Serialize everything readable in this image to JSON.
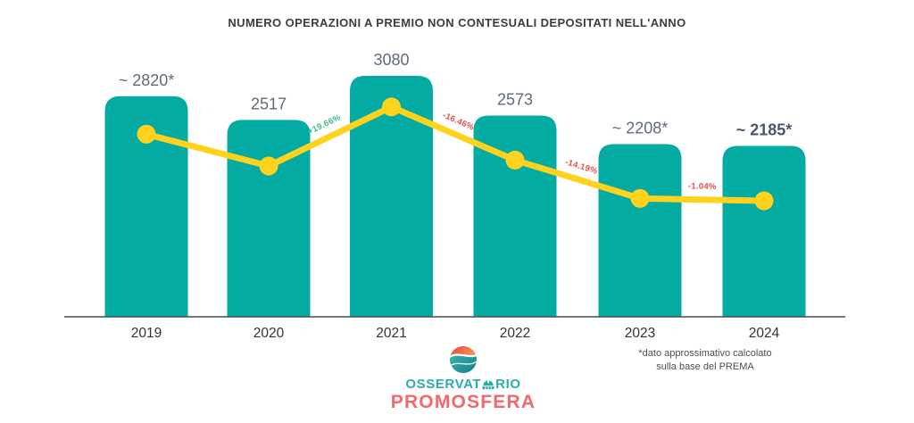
{
  "title": "NUMERO OPERAZIONI A PREMIO NON CONTESUALI DEPOSITATI NELL'ANNO",
  "chart_data": {
    "type": "bar",
    "subtype": "bar-with-trend-line-overlay",
    "title": "NUMERO OPERAZIONI A PREMIO NON CONTESUALI DEPOSITATI NELL'ANNO",
    "xlabel": "",
    "ylabel": "",
    "ylim": [
      0,
      3400
    ],
    "grid": false,
    "legend": "none",
    "categories": [
      "2019",
      "2020",
      "2021",
      "2022",
      "2023",
      "2024"
    ],
    "values": [
      2820,
      2517,
      3080,
      2573,
      2208,
      2185
    ],
    "value_labels": [
      "~ 2820*",
      "2517",
      "3080",
      "2573",
      "~ 2208*",
      "~ 2185*"
    ],
    "value_label_bold": [
      false,
      false,
      false,
      false,
      false,
      true
    ],
    "segment_labels": [
      {
        "between": [
          "2020",
          "2021"
        ],
        "text": "+19.66%",
        "color": "#3dbd82"
      },
      {
        "between": [
          "2021",
          "2022"
        ],
        "text": "-16.46%",
        "color": "#ee4b4e"
      },
      {
        "between": [
          "2022",
          "2023"
        ],
        "text": "-14.19%",
        "color": "#ee4b4e"
      },
      {
        "between": [
          "2023",
          "2024"
        ],
        "text": "-1.04%",
        "color": "#ee4b4e"
      }
    ],
    "colors": {
      "bar": "#03aba2",
      "line": "#ffd21e",
      "marker": "#ffd21e",
      "positive_pct": "#3dbd82",
      "negative_pct": "#ee4b4e",
      "value_label": "#5d6b7b",
      "value_label_bold": "#4a576b",
      "tick_label": "#343434",
      "axis": "#4d4d4d"
    }
  },
  "footnote": {
    "line1": "*dato approssimativo calcolato",
    "line2": "sulla base del PREMA"
  },
  "logo": {
    "word1_part1": "OSSERVAT",
    "word1_part2": "RIO",
    "word2": "PROMOSFERA",
    "teal": "#2baea7",
    "coral": "#f2686c"
  }
}
